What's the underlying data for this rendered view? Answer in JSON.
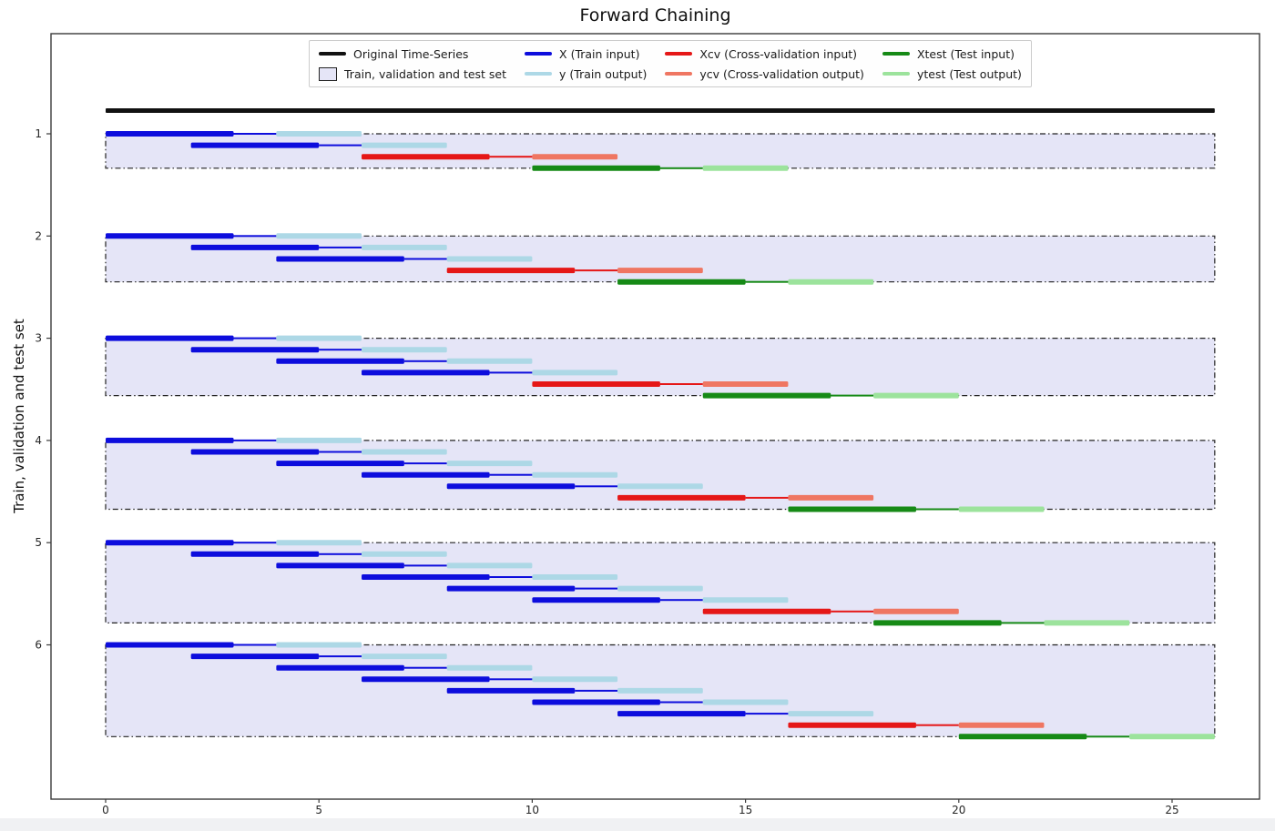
{
  "title": "Forward Chaining",
  "axes": {
    "y_label": "Train, validation and test set",
    "x_tick_labels": [
      "0",
      "5",
      "10",
      "15",
      "20",
      "25"
    ],
    "x_tick_values": [
      0,
      5,
      10,
      15,
      20,
      25
    ],
    "y_tick_labels": [
      "1",
      "2",
      "3",
      "4",
      "5",
      "6"
    ],
    "y_tick_values": [
      1,
      2,
      3,
      4,
      5,
      6
    ]
  },
  "legend": {
    "items": [
      {
        "label": "Original Time-Series",
        "swatch": "line",
        "color": "#111111"
      },
      {
        "label": "Train, validation and test set",
        "swatch": "patch",
        "color": "#e5e5f7"
      },
      {
        "label": "X (Train input)",
        "swatch": "line",
        "color": "#0d0ddd"
      },
      {
        "label": "y (Train output)",
        "swatch": "line",
        "color": "#add8e6"
      },
      {
        "label": "Xcv (Cross-validation input)",
        "swatch": "line",
        "color": "#e51717"
      },
      {
        "label": "ycv (Cross-validation output)",
        "swatch": "line",
        "color": "#ef7662"
      },
      {
        "label": "Xtest (Test input)",
        "swatch": "line",
        "color": "#168a16"
      },
      {
        "label": "ytest (Test output)",
        "swatch": "line",
        "color": "#9ce39c"
      }
    ]
  },
  "colors": {
    "original_series": "#111111",
    "box_fill": "#e5e5f7",
    "box_border": "#222222",
    "train_input": "#0d0ddd",
    "train_output": "#add8e6",
    "cv_input": "#e51717",
    "cv_output": "#ef7662",
    "test_input": "#168a16",
    "test_output": "#9ce39c",
    "frame": "#3a3a3a",
    "tick_text": "#262626"
  },
  "chart_data": {
    "type": "timeline",
    "title": "Forward Chaining",
    "ylabel": "Train, validation and test set",
    "xlim_shown": [
      -1.3,
      27.1
    ],
    "x_ticks": [
      0,
      5,
      10,
      15,
      20,
      25
    ],
    "fold_labels": [
      1,
      2,
      3,
      4,
      5,
      6
    ],
    "grid": false,
    "legend_position": "top-center",
    "original_series_span": [
      0,
      26
    ],
    "segment_pattern": {
      "input_length": 3,
      "connector_length": 1,
      "output_length": 2,
      "row_step": 2
    },
    "folds": [
      {
        "fold": 1,
        "box_span": [
          0,
          26
        ],
        "train_rows": [
          {
            "input": [
              0,
              3
            ],
            "output": [
              4,
              6
            ]
          },
          {
            "input": [
              2,
              5
            ],
            "output": [
              6,
              8
            ]
          }
        ],
        "cv": {
          "input": [
            6,
            9
          ],
          "output": [
            10,
            12
          ]
        },
        "test": {
          "input": [
            10,
            13
          ],
          "output": [
            14,
            16
          ]
        }
      },
      {
        "fold": 2,
        "box_span": [
          0,
          26
        ],
        "train_rows": [
          {
            "input": [
              0,
              3
            ],
            "output": [
              4,
              6
            ]
          },
          {
            "input": [
              2,
              5
            ],
            "output": [
              6,
              8
            ]
          },
          {
            "input": [
              4,
              7
            ],
            "output": [
              8,
              10
            ]
          }
        ],
        "cv": {
          "input": [
            8,
            11
          ],
          "output": [
            12,
            14
          ]
        },
        "test": {
          "input": [
            12,
            15
          ],
          "output": [
            16,
            18
          ]
        }
      },
      {
        "fold": 3,
        "box_span": [
          0,
          26
        ],
        "train_rows": [
          {
            "input": [
              0,
              3
            ],
            "output": [
              4,
              6
            ]
          },
          {
            "input": [
              2,
              5
            ],
            "output": [
              6,
              8
            ]
          },
          {
            "input": [
              4,
              7
            ],
            "output": [
              8,
              10
            ]
          },
          {
            "input": [
              6,
              9
            ],
            "output": [
              10,
              12
            ]
          }
        ],
        "cv": {
          "input": [
            10,
            13
          ],
          "output": [
            14,
            16
          ]
        },
        "test": {
          "input": [
            14,
            17
          ],
          "output": [
            18,
            20
          ]
        }
      },
      {
        "fold": 4,
        "box_span": [
          0,
          26
        ],
        "train_rows": [
          {
            "input": [
              0,
              3
            ],
            "output": [
              4,
              6
            ]
          },
          {
            "input": [
              2,
              5
            ],
            "output": [
              6,
              8
            ]
          },
          {
            "input": [
              4,
              7
            ],
            "output": [
              8,
              10
            ]
          },
          {
            "input": [
              6,
              9
            ],
            "output": [
              10,
              12
            ]
          },
          {
            "input": [
              8,
              11
            ],
            "output": [
              12,
              14
            ]
          }
        ],
        "cv": {
          "input": [
            12,
            15
          ],
          "output": [
            16,
            18
          ]
        },
        "test": {
          "input": [
            16,
            19
          ],
          "output": [
            20,
            22
          ]
        }
      },
      {
        "fold": 5,
        "box_span": [
          0,
          26
        ],
        "train_rows": [
          {
            "input": [
              0,
              3
            ],
            "output": [
              4,
              6
            ]
          },
          {
            "input": [
              2,
              5
            ],
            "output": [
              6,
              8
            ]
          },
          {
            "input": [
              4,
              7
            ],
            "output": [
              8,
              10
            ]
          },
          {
            "input": [
              6,
              9
            ],
            "output": [
              10,
              12
            ]
          },
          {
            "input": [
              8,
              11
            ],
            "output": [
              12,
              14
            ]
          },
          {
            "input": [
              10,
              13
            ],
            "output": [
              14,
              16
            ]
          }
        ],
        "cv": {
          "input": [
            14,
            17
          ],
          "output": [
            18,
            20
          ]
        },
        "test": {
          "input": [
            18,
            21
          ],
          "output": [
            22,
            24
          ]
        }
      },
      {
        "fold": 6,
        "box_span": [
          0,
          26
        ],
        "train_rows": [
          {
            "input": [
              0,
              3
            ],
            "output": [
              4,
              6
            ]
          },
          {
            "input": [
              2,
              5
            ],
            "output": [
              6,
              8
            ]
          },
          {
            "input": [
              4,
              7
            ],
            "output": [
              8,
              10
            ]
          },
          {
            "input": [
              6,
              9
            ],
            "output": [
              10,
              12
            ]
          },
          {
            "input": [
              8,
              11
            ],
            "output": [
              12,
              14
            ]
          },
          {
            "input": [
              10,
              13
            ],
            "output": [
              14,
              16
            ]
          },
          {
            "input": [
              12,
              15
            ],
            "output": [
              16,
              18
            ]
          }
        ],
        "cv": {
          "input": [
            16,
            19
          ],
          "output": [
            20,
            22
          ]
        },
        "test": {
          "input": [
            20,
            23
          ],
          "output": [
            24,
            26
          ]
        }
      }
    ]
  }
}
